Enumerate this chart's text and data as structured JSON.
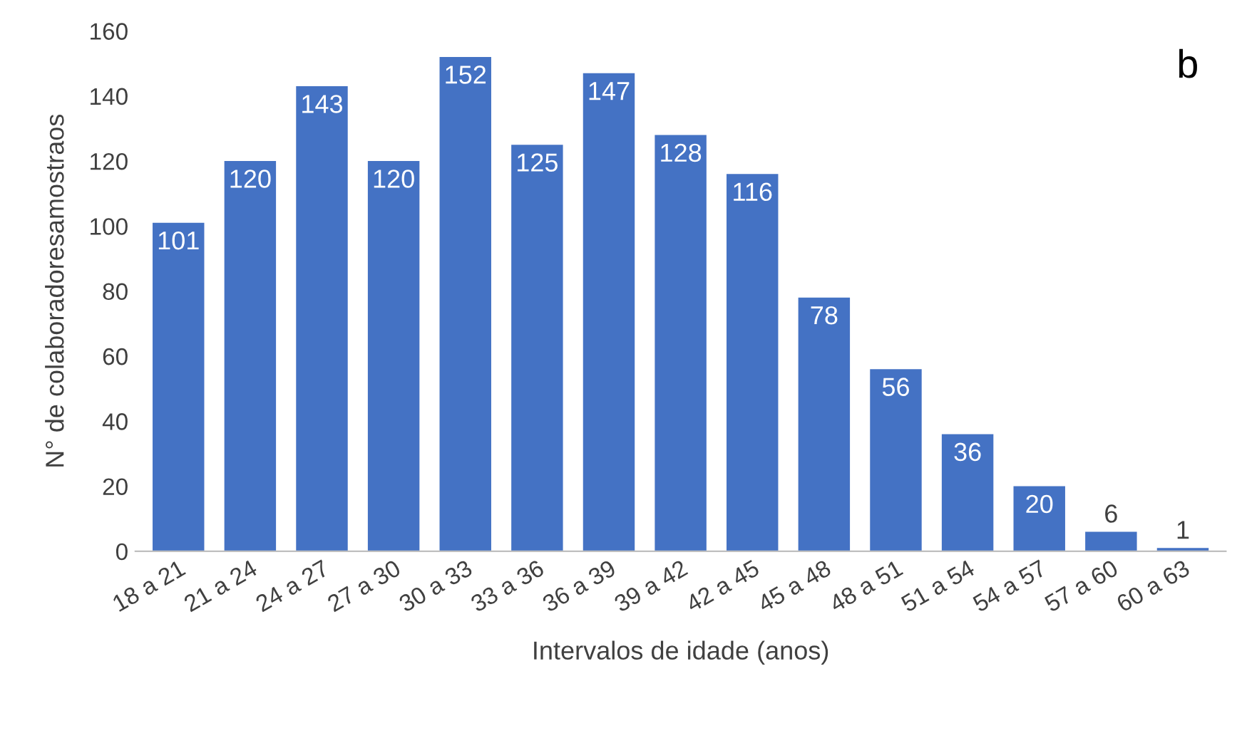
{
  "chart_data": {
    "type": "bar",
    "xlabel": "Intervalos de idade (anos)",
    "ylabel": "N° de colaboradoresamostraos",
    "annotations": [
      "b"
    ],
    "categories": [
      "18 a 21",
      "21 a 24",
      "24 a 27",
      "27 a 30",
      "30 a 33",
      "33 a 36",
      "36 a 39",
      "39 a 42",
      "42 a 45",
      "45 a 48",
      "48 a 51",
      "51 a 54",
      "54 a 57",
      "57 a 60",
      "60 a 63"
    ],
    "values": [
      101,
      120,
      143,
      120,
      152,
      125,
      147,
      128,
      116,
      78,
      56,
      36,
      20,
      6,
      1
    ],
    "color": "#4472c4",
    "ylim": [
      0,
      160
    ],
    "yticks": [
      0,
      20,
      40,
      60,
      80,
      100,
      120,
      140,
      160
    ],
    "data_labels": true,
    "grid": false,
    "legend": false
  }
}
